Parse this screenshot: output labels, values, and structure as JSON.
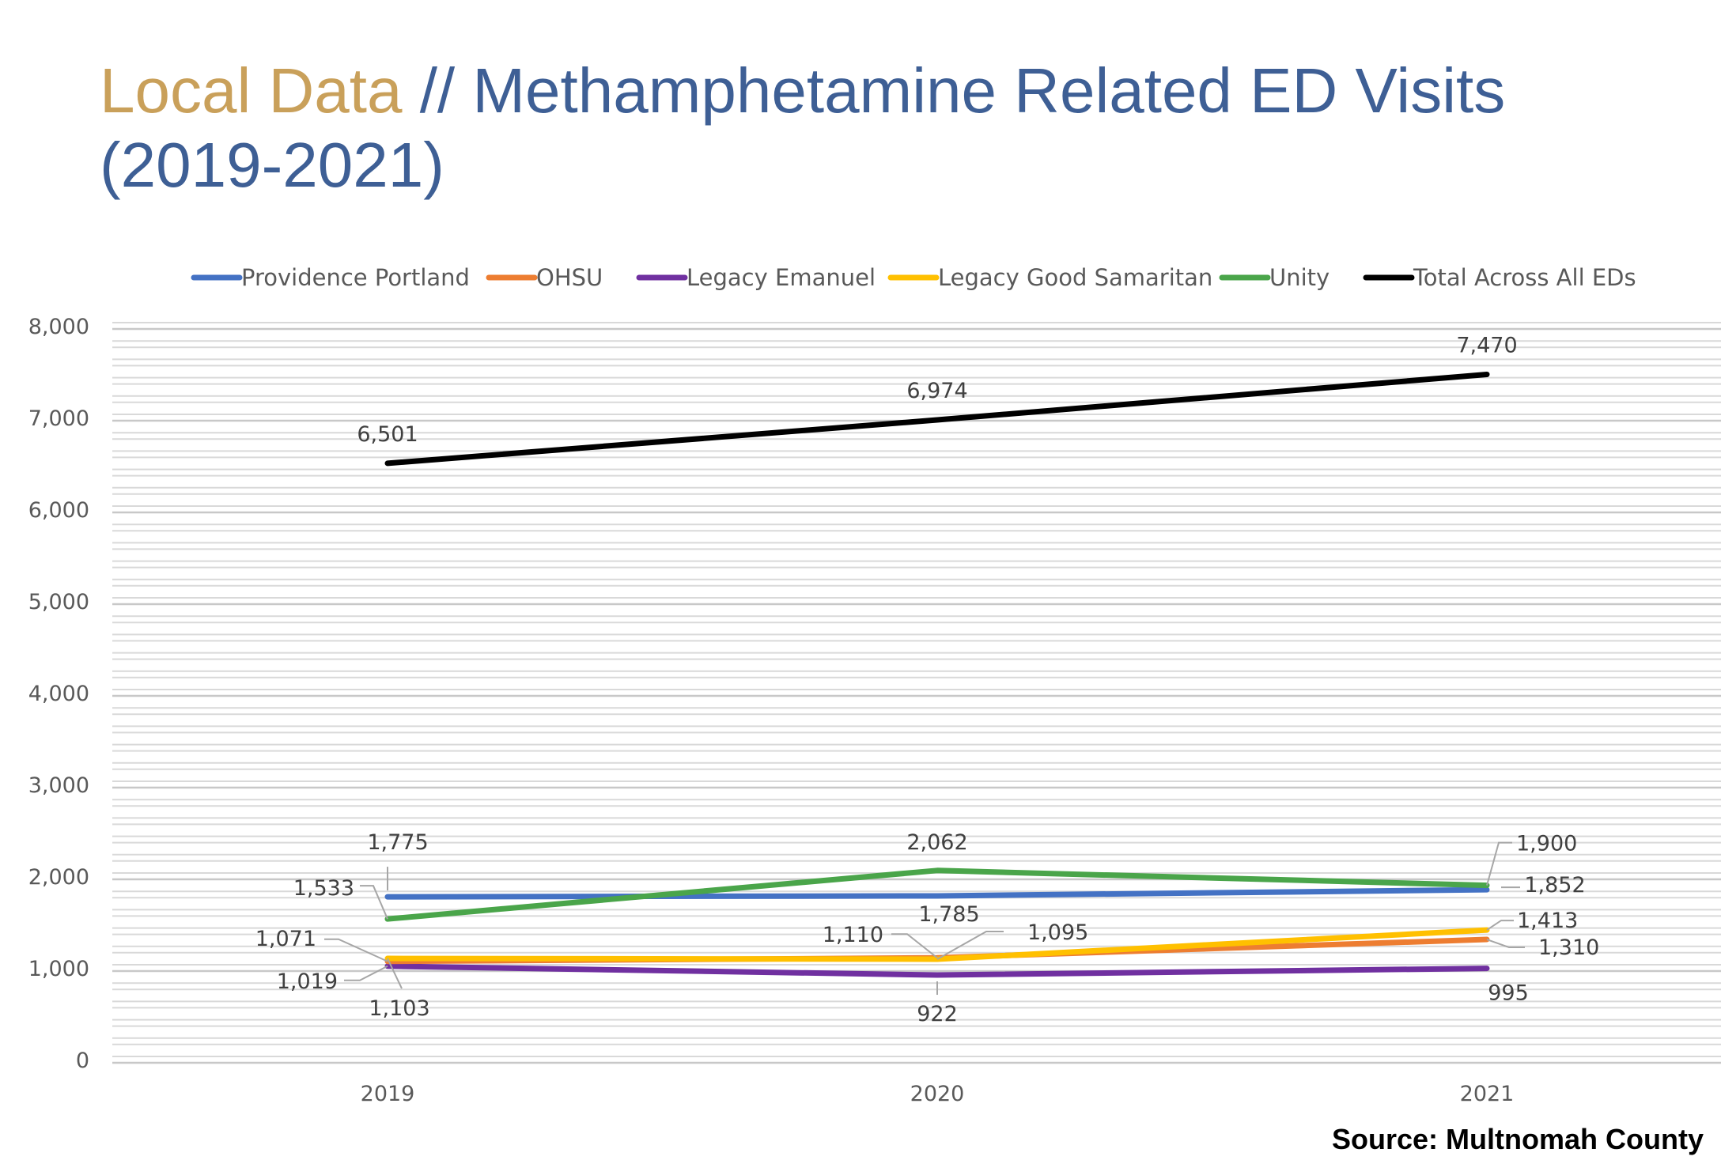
{
  "title": {
    "accent": "Local Data",
    "rest": " // Methamphetamine Related ED Visits (2019-2021)"
  },
  "source": "Source: Multnomah County",
  "colors": {
    "Providence Portland": "#4472c4",
    "OHSU": "#ed7d31",
    "Legacy Emanuel": "#7030a0",
    "Legacy Good Samaritan": "#ffc000",
    "Unity": "#4aa54a",
    "Total Across All EDs": "#000000",
    "title_main": "#3e5f95",
    "title_accent": "#c9a05a"
  },
  "chart_data": {
    "type": "line",
    "categories": [
      "2019",
      "2020",
      "2021"
    ],
    "ylim": [
      0,
      8000
    ],
    "y_ticks": [
      0,
      1000,
      2000,
      3000,
      4000,
      5000,
      6000,
      7000,
      8000
    ],
    "y_tick_labels": [
      "0",
      "1,000",
      "2,000",
      "3,000",
      "4,000",
      "5,000",
      "6,000",
      "7,000",
      "8,000"
    ],
    "grid": true,
    "legend": "top",
    "series": [
      {
        "name": "Providence Portland",
        "values": [
          1775,
          1785,
          1852
        ],
        "labels": [
          "1,775",
          "1,785",
          "1,852"
        ]
      },
      {
        "name": "OHSU",
        "values": [
          1071,
          1110,
          1310
        ],
        "labels": [
          "1,071",
          "1,110",
          "1,310"
        ]
      },
      {
        "name": "Legacy Emanuel",
        "values": [
          1019,
          922,
          995
        ],
        "labels": [
          "1,019",
          "922",
          "995"
        ]
      },
      {
        "name": "Legacy Good Samaritan",
        "values": [
          1103,
          1095,
          1413
        ],
        "labels": [
          "1,103",
          "1,095",
          "1,413"
        ]
      },
      {
        "name": "Unity",
        "values": [
          1533,
          2062,
          1900
        ],
        "labels": [
          "1,533",
          "2,062",
          "1,900"
        ]
      },
      {
        "name": "Total Across All EDs",
        "values": [
          6501,
          6974,
          7470
        ],
        "labels": [
          "6,501",
          "6,974",
          "7,470"
        ]
      }
    ]
  }
}
